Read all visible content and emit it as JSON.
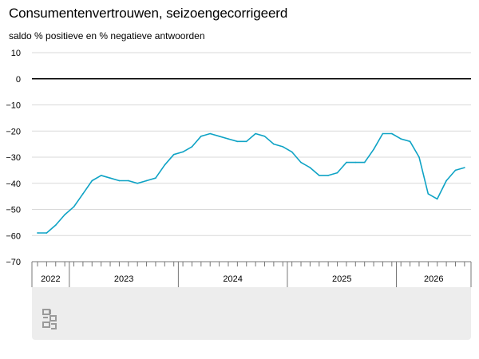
{
  "title": "Consumentenvertrouwen, seizoengecorrigeerd",
  "subtitle": "saldo % positieve en % negatieve antwoorden",
  "colors": {
    "line": "#0fa3c5",
    "zero_line": "#000000",
    "grid": "#d9d9d9",
    "axis": "#777777",
    "footer": "#ededed",
    "logo": "#9a9a9a"
  },
  "logo_icon": "cbs-logo-icon",
  "chart_data": {
    "type": "line",
    "title": "Consumentenvertrouwen, seizoengecorrigeerd",
    "ylabel": "saldo % positieve en % negatieve antwoorden",
    "xlabel": "",
    "ylim": [
      -70,
      10
    ],
    "y_ticks": [
      10,
      0,
      -10,
      -20,
      -30,
      -40,
      -50,
      -60,
      -70
    ],
    "grid": true,
    "x_start": "2022-09",
    "x_frequency": "monthly",
    "year_labels": [
      "2022",
      "2023",
      "2024",
      "2025",
      "2026"
    ],
    "series": [
      {
        "values": [
          -59,
          -59,
          -56,
          -52,
          -49,
          -44,
          -39,
          -37,
          -38,
          -39,
          -39,
          -40,
          -39,
          -38,
          -33,
          -29,
          -28,
          -26,
          -22,
          -21,
          -22,
          -23,
          -24,
          -24,
          -21,
          -22,
          -25,
          -26,
          -28,
          -32,
          -34,
          -37,
          -37,
          -36,
          -32,
          -32,
          -32,
          -27,
          -21,
          -21,
          -23,
          -24,
          -30,
          -44,
          -46,
          -39,
          -35,
          -34
        ]
      }
    ]
  }
}
